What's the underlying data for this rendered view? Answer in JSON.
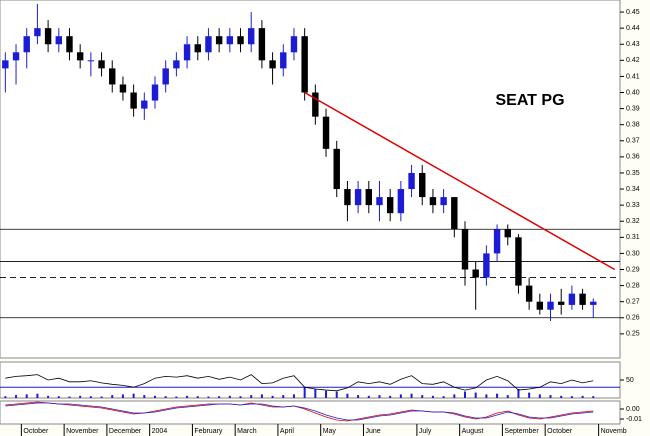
{
  "chart_data": {
    "type": "candlestick",
    "title": "SEAT PG",
    "categories": [
      null,
      null,
      "October",
      null,
      null,
      null,
      "November",
      null,
      null,
      null,
      "December",
      null,
      null,
      null,
      "2004",
      null,
      null,
      null,
      "February",
      null,
      null,
      null,
      "March",
      null,
      null,
      null,
      "April",
      null,
      null,
      null,
      "May",
      null,
      null,
      null,
      "June",
      null,
      null,
      null,
      null,
      "July",
      null,
      null,
      null,
      "August",
      null,
      null,
      null,
      "September",
      null,
      null,
      null,
      "October",
      null,
      null,
      null,
      null,
      "Novemb",
      null
    ],
    "open": [
      0.415,
      0.42,
      0.425,
      0.435,
      0.44,
      0.43,
      0.435,
      0.425,
      0.42,
      0.42,
      0.415,
      0.405,
      0.4,
      0.39,
      0.395,
      0.405,
      0.415,
      0.42,
      0.43,
      0.425,
      0.435,
      0.43,
      0.435,
      0.43,
      0.44,
      0.42,
      0.415,
      0.425,
      0.435,
      0.4,
      0.385,
      0.365,
      0.34,
      0.33,
      0.34,
      0.33,
      0.335,
      0.325,
      0.34,
      0.35,
      0.335,
      0.33,
      0.335,
      0.315,
      0.29,
      0.285,
      0.3,
      0.315,
      0.31,
      0.28,
      0.27,
      0.265,
      0.27,
      0.268,
      0.275,
      0.268,
      null,
      null
    ],
    "high": [
      0.425,
      0.43,
      0.44,
      0.455,
      0.445,
      0.44,
      0.44,
      0.43,
      0.425,
      0.425,
      0.42,
      0.41,
      0.405,
      0.4,
      0.41,
      0.42,
      0.425,
      0.435,
      0.435,
      0.44,
      0.44,
      0.44,
      0.44,
      0.45,
      0.445,
      0.425,
      0.43,
      0.44,
      0.44,
      0.405,
      0.39,
      0.37,
      0.345,
      0.345,
      0.345,
      0.345,
      0.34,
      0.345,
      0.355,
      0.355,
      0.34,
      0.34,
      0.335,
      0.32,
      0.295,
      0.305,
      0.318,
      0.318,
      0.312,
      0.285,
      0.275,
      0.275,
      0.278,
      0.28,
      0.278,
      0.272,
      null,
      null
    ],
    "low": [
      0.4,
      0.405,
      0.415,
      0.43,
      0.425,
      0.425,
      0.42,
      0.415,
      0.41,
      0.41,
      0.4,
      0.395,
      0.385,
      0.383,
      0.39,
      0.4,
      0.41,
      0.415,
      0.42,
      0.42,
      0.425,
      0.425,
      0.425,
      0.425,
      0.415,
      0.405,
      0.41,
      0.42,
      0.395,
      0.38,
      0.36,
      0.335,
      0.32,
      0.325,
      0.325,
      0.32,
      0.32,
      0.32,
      0.335,
      0.33,
      0.325,
      0.325,
      0.31,
      0.28,
      0.265,
      0.28,
      0.295,
      0.305,
      0.275,
      0.265,
      0.262,
      0.258,
      0.262,
      0.265,
      0.265,
      0.26,
      null,
      null
    ],
    "close": [
      0.42,
      0.425,
      0.435,
      0.44,
      0.43,
      0.435,
      0.425,
      0.42,
      0.42,
      0.415,
      0.405,
      0.4,
      0.39,
      0.395,
      0.405,
      0.415,
      0.42,
      0.43,
      0.425,
      0.435,
      0.43,
      0.435,
      0.43,
      0.44,
      0.42,
      0.415,
      0.425,
      0.435,
      0.4,
      0.385,
      0.365,
      0.34,
      0.33,
      0.34,
      0.33,
      0.335,
      0.325,
      0.34,
      0.35,
      0.335,
      0.33,
      0.335,
      0.315,
      0.29,
      0.285,
      0.3,
      0.315,
      0.31,
      0.28,
      0.27,
      0.265,
      0.27,
      0.268,
      0.275,
      0.268,
      0.27,
      null,
      null
    ],
    "up_color": "#1c1cd6",
    "down_color": "#000000",
    "ylim": [
      0.235,
      0.4575
    ],
    "yticks": [
      0.25,
      0.26,
      0.27,
      0.28,
      0.29,
      {
        "value": 0.3,
        "label": "0.30"
      },
      0.31,
      0.32,
      0.33,
      0.34,
      0.35,
      0.36,
      0.37,
      0.38,
      0.39,
      {
        "value": 0.4,
        "label": "0.40"
      },
      0.41,
      0.42,
      0.43,
      0.44,
      0.45
    ],
    "hlines": [
      {
        "value": 0.315,
        "style": "solid"
      },
      {
        "value": 0.295,
        "style": "solid"
      },
      {
        "value": 0.285,
        "style": "dashed"
      },
      {
        "value": 0.26,
        "style": "solid"
      }
    ],
    "trendline": {
      "color": "#e00000",
      "from": [
        28,
        0.4
      ],
      "to": [
        57,
        0.29
      ]
    },
    "panel2": {
      "ylim": [
        0,
        100
      ],
      "yticks": [
        50
      ],
      "level": 30,
      "line": [
        55,
        60,
        62,
        65,
        50,
        55,
        45,
        45,
        48,
        42,
        38,
        35,
        30,
        40,
        55,
        60,
        58,
        62,
        55,
        60,
        52,
        58,
        50,
        65,
        40,
        42,
        55,
        62,
        30,
        25,
        22,
        20,
        28,
        45,
        40,
        45,
        38,
        52,
        62,
        40,
        38,
        45,
        30,
        22,
        28,
        50,
        60,
        48,
        22,
        25,
        30,
        45,
        40,
        50,
        42,
        48,
        null,
        null
      ],
      "volume": [
        5,
        8,
        10,
        12,
        6,
        5,
        4,
        6,
        5,
        4,
        8,
        10,
        12,
        8,
        6,
        5,
        4,
        6,
        5,
        4,
        5,
        6,
        5,
        8,
        10,
        6,
        8,
        10,
        30,
        25,
        20,
        18,
        12,
        8,
        6,
        8,
        6,
        10,
        12,
        8,
        6,
        5,
        10,
        18,
        15,
        10,
        12,
        8,
        25,
        15,
        10,
        8,
        6,
        5,
        6,
        5,
        null,
        null
      ]
    },
    "panel3": {
      "ylim": [
        -0.015,
        0.008
      ],
      "yticks": [
        {
          "value": 0,
          "label": "0.00"
        },
        {
          "value": -0.01,
          "label": "-0.01"
        }
      ],
      "series": [
        {
          "color": "#e00000",
          "values": [
            0.004,
            0.005,
            0.006,
            0.007,
            0.006,
            0.005,
            0.004,
            0.003,
            0.002,
            0.001,
            -0.001,
            -0.003,
            -0.005,
            -0.004,
            -0.002,
            0,
            0.002,
            0.003,
            0.004,
            0.005,
            0.005,
            0.005,
            0.004,
            0.006,
            0.004,
            0.002,
            0.002,
            0.003,
            0,
            -0.004,
            -0.008,
            -0.011,
            -0.012,
            -0.01,
            -0.008,
            -0.006,
            -0.005,
            -0.003,
            -0.001,
            -0.002,
            -0.003,
            -0.003,
            -0.005,
            -0.008,
            -0.01,
            -0.008,
            -0.004,
            -0.002,
            -0.006,
            -0.009,
            -0.01,
            -0.008,
            -0.006,
            -0.004,
            -0.003,
            -0.002,
            null,
            null
          ]
        },
        {
          "color": "#1c1cd6",
          "values": [
            0.003,
            0.004,
            0.005,
            0.006,
            0.006,
            0.005,
            0.005,
            0.004,
            0.003,
            0.002,
            0,
            -0.002,
            -0.004,
            -0.004,
            -0.003,
            -0.001,
            0.001,
            0.002,
            0.003,
            0.004,
            0.005,
            0.005,
            0.004,
            0.005,
            0.005,
            0.003,
            0.002,
            0.003,
            0.001,
            -0.002,
            -0.006,
            -0.009,
            -0.011,
            -0.011,
            -0.009,
            -0.007,
            -0.006,
            -0.004,
            -0.002,
            -0.002,
            -0.003,
            -0.003,
            -0.004,
            -0.007,
            -0.009,
            -0.009,
            -0.006,
            -0.003,
            -0.005,
            -0.008,
            -0.009,
            -0.009,
            -0.007,
            -0.005,
            -0.004,
            -0.003,
            null,
            null
          ]
        }
      ]
    }
  }
}
